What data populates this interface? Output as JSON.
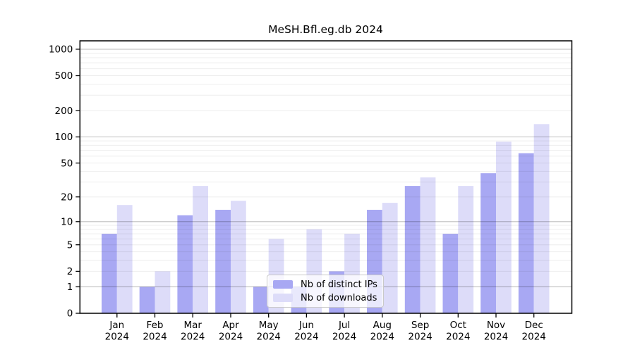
{
  "figure": {
    "title": "MeSH.Bfl.eg.db 2024"
  },
  "legend": {
    "items": [
      {
        "label": "Nb of distinct IPs",
        "series_key": "distinct_ips"
      },
      {
        "label": "Nb of downloads",
        "series_key": "downloads"
      }
    ]
  },
  "colors": {
    "distinct_ips": "#a8a8f3",
    "downloads": "#dddcf9",
    "spine": "#000000",
    "grid_major": "rgba(0,0,0,0.26)",
    "grid_minor": "rgba(0,0,0,0.07)",
    "legend_border": "#c9c9c9",
    "background": "#ffffff"
  },
  "chart_data": {
    "type": "bar",
    "title": "MeSH.Bfl.eg.db 2024",
    "categories": [
      "Jan 2024",
      "Feb 2024",
      "Mar 2024",
      "Apr 2024",
      "May 2024",
      "Jun 2024",
      "Jul 2024",
      "Aug 2024",
      "Sep 2024",
      "Oct 2024",
      "Nov 2024",
      "Dec 2024"
    ],
    "months": [
      "Jan",
      "Feb",
      "Mar",
      "Apr",
      "May",
      "Jun",
      "Jul",
      "Aug",
      "Sep",
      "Oct",
      "Nov",
      "Dec"
    ],
    "year": "2024",
    "series": [
      {
        "name": "Nb of distinct IPs",
        "key": "distinct_ips",
        "values": [
          7,
          1,
          12,
          14,
          1,
          1,
          2,
          14,
          27,
          7,
          38,
          65
        ]
      },
      {
        "name": "Nb of downloads",
        "key": "downloads",
        "values": [
          16,
          2,
          27,
          18,
          6,
          8,
          7,
          17,
          34,
          27,
          88,
          140
        ]
      }
    ],
    "yscale": "log1p",
    "yticks": [
      0,
      1,
      2,
      5,
      10,
      20,
      50,
      100,
      200,
      500,
      1000
    ],
    "ytick_labels": [
      "0",
      "1",
      "2",
      "5",
      "10",
      "20",
      "50",
      "100",
      "200",
      "500",
      "1000"
    ],
    "ylim": [
      0,
      1250
    ],
    "grid": true,
    "grid_major_at": [
      1,
      10,
      100,
      1000
    ],
    "legend_position": "inside-bottom-center",
    "note": "y axis is log10(value+1) scaled; gridlines drawn over bars"
  }
}
